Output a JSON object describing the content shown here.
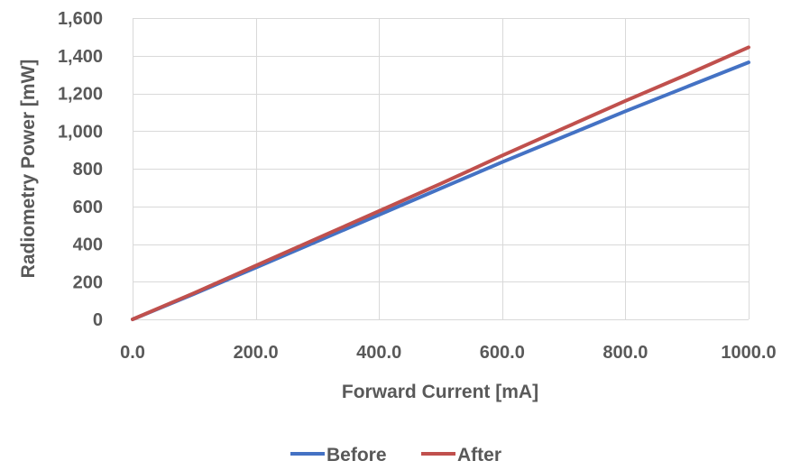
{
  "chart_data": {
    "type": "line",
    "title": "",
    "xlabel": "Forward Current [mA]",
    "ylabel": "Radiometry Power [mW]",
    "xlim": [
      0,
      1000
    ],
    "ylim": [
      0,
      1600
    ],
    "x_ticks": [
      0,
      200,
      400,
      600,
      800,
      1000
    ],
    "x_tick_labels": [
      "0.0",
      "200.0",
      "400.0",
      "600.0",
      "800.0",
      "1000.0"
    ],
    "y_ticks": [
      0,
      200,
      400,
      600,
      800,
      1000,
      1200,
      1400,
      1600
    ],
    "y_tick_labels": [
      "0",
      "200",
      "400",
      "600",
      "800",
      "1,000",
      "1,200",
      "1,400",
      "1,600"
    ],
    "grid": true,
    "legend_position": "bottom",
    "x": [
      0,
      100,
      200,
      300,
      400,
      500,
      600,
      700,
      800,
      900,
      1000
    ],
    "series": [
      {
        "name": "Before",
        "color": "#4472C4",
        "values": [
          0,
          135,
          275,
          415,
          555,
          695,
          835,
          970,
          1105,
          1235,
          1365
        ]
      },
      {
        "name": "After",
        "color": "#C0504D",
        "values": [
          0,
          140,
          285,
          430,
          575,
          720,
          870,
          1015,
          1160,
          1300,
          1445
        ]
      }
    ]
  }
}
